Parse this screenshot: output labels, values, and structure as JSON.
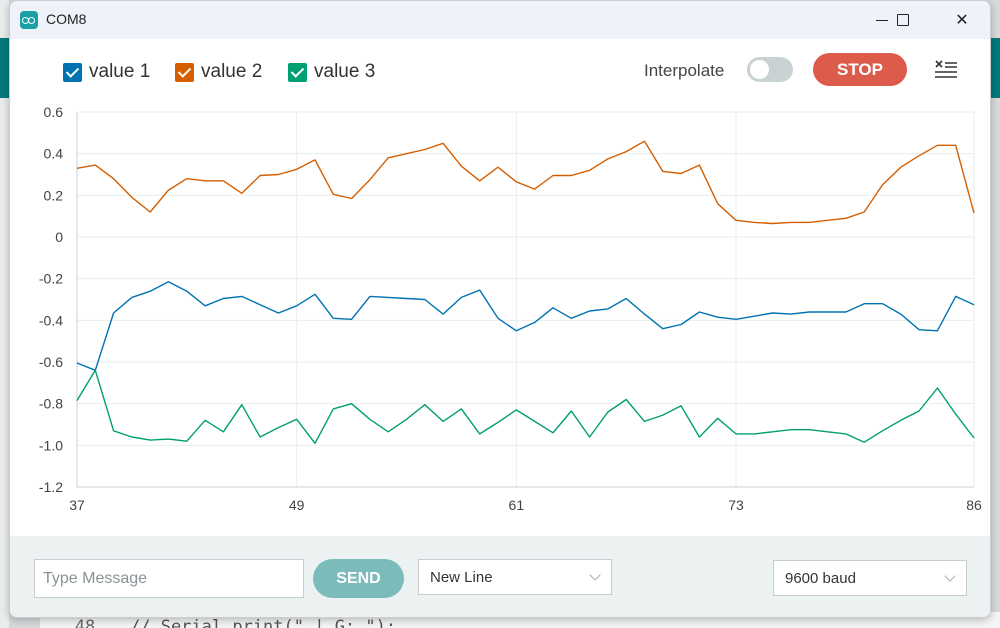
{
  "window": {
    "title": "COM8"
  },
  "background": {
    "line_number": "48",
    "code": "// Serial.print(\" | G: \");"
  },
  "legend": [
    {
      "label": "value 1",
      "color": "#0072b2",
      "checked": true
    },
    {
      "label": "value 2",
      "color": "#d55e00",
      "checked": true
    },
    {
      "label": "value 3",
      "color": "#009e73",
      "checked": true
    }
  ],
  "toolbar": {
    "interpolate_label": "Interpolate",
    "interpolate_on": false,
    "stop_label": "STOP",
    "clear_icon": "clear-list-icon"
  },
  "bottom": {
    "message_placeholder": "Type Message",
    "send_label": "SEND",
    "line_ending": "New Line",
    "baud": "9600 baud"
  },
  "chart_data": {
    "type": "line",
    "xlim": [
      37,
      86
    ],
    "ylim": [
      -1.2,
      0.6
    ],
    "x_ticks": [
      "37",
      "49",
      "61",
      "73",
      "86"
    ],
    "y_ticks": [
      "0.6",
      "0.4",
      "0.2",
      "0",
      "-0.2",
      "-0.4",
      "-0.6",
      "-0.8",
      "-1.0",
      "-1.2"
    ],
    "grid": true,
    "x_start": 37,
    "series": [
      {
        "name": "value 1",
        "color": "#0072b2",
        "values": [
          -0.605,
          -0.64,
          -0.365,
          -0.29,
          -0.26,
          -0.215,
          -0.26,
          -0.33,
          -0.295,
          -0.285,
          -0.325,
          -0.365,
          -0.33,
          -0.275,
          -0.39,
          -0.395,
          -0.285,
          -0.29,
          -0.295,
          -0.3,
          -0.37,
          -0.29,
          -0.255,
          -0.39,
          -0.45,
          -0.41,
          -0.34,
          -0.39,
          -0.355,
          -0.345,
          -0.295,
          -0.37,
          -0.44,
          -0.42,
          -0.36,
          -0.385,
          -0.395,
          -0.38,
          -0.365,
          -0.37,
          -0.36,
          -0.36,
          -0.36,
          -0.32,
          -0.32,
          -0.37,
          -0.445,
          -0.45,
          -0.285,
          -0.325
        ]
      },
      {
        "name": "value 2",
        "color": "#d55e00",
        "values": [
          0.33,
          0.345,
          0.28,
          0.19,
          0.12,
          0.225,
          0.28,
          0.27,
          0.27,
          0.21,
          0.295,
          0.3,
          0.325,
          0.37,
          0.205,
          0.185,
          0.275,
          0.38,
          0.4,
          0.42,
          0.45,
          0.34,
          0.27,
          0.335,
          0.265,
          0.23,
          0.295,
          0.295,
          0.32,
          0.375,
          0.41,
          0.46,
          0.315,
          0.305,
          0.345,
          0.16,
          0.08,
          0.07,
          0.065,
          0.07,
          0.07,
          0.08,
          0.09,
          0.12,
          0.25,
          0.335,
          0.39,
          0.44,
          0.44,
          0.115
        ]
      },
      {
        "name": "value 3",
        "color": "#009e73",
        "values": [
          -0.785,
          -0.64,
          -0.93,
          -0.96,
          -0.975,
          -0.97,
          -0.98,
          -0.88,
          -0.935,
          -0.805,
          -0.96,
          -0.915,
          -0.875,
          -0.99,
          -0.825,
          -0.8,
          -0.875,
          -0.935,
          -0.875,
          -0.805,
          -0.885,
          -0.825,
          -0.945,
          -0.89,
          -0.83,
          -0.885,
          -0.94,
          -0.835,
          -0.96,
          -0.84,
          -0.78,
          -0.885,
          -0.855,
          -0.81,
          -0.96,
          -0.87,
          -0.945,
          -0.945,
          -0.935,
          -0.925,
          -0.925,
          -0.935,
          -0.945,
          -0.985,
          -0.93,
          -0.88,
          -0.835,
          -0.725,
          -0.85,
          -0.965
        ]
      }
    ]
  }
}
